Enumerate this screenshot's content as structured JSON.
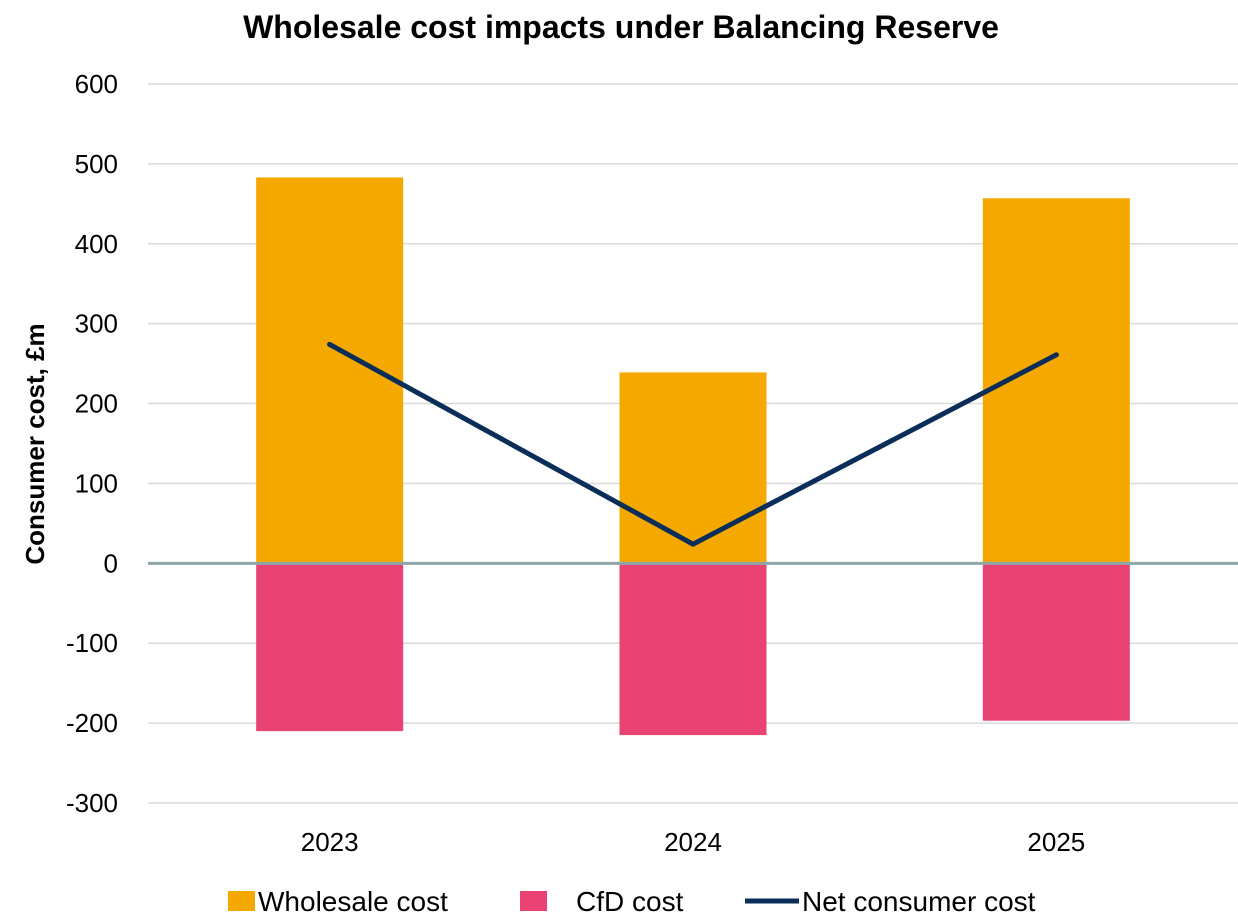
{
  "chart_data": {
    "type": "bar",
    "title": "Wholesale cost impacts under Balancing Reserve",
    "xlabel": "",
    "ylabel": "Consumer cost, £m",
    "categories": [
      "2023",
      "2024",
      "2025"
    ],
    "ylim": [
      -300,
      600
    ],
    "yticks": [
      600,
      500,
      400,
      300,
      200,
      100,
      0,
      -100,
      -200,
      -300
    ],
    "stacked": true,
    "grid": true,
    "legend_position": "bottom",
    "series": [
      {
        "name": "Wholesale cost",
        "kind": "bar",
        "color": "#f5a800",
        "values": [
          483,
          239,
          457
        ]
      },
      {
        "name": "CfD cost",
        "kind": "bar",
        "color": "#e84372",
        "values": [
          -210,
          -215,
          -197
        ]
      },
      {
        "name": "Net consumer cost",
        "kind": "line",
        "color": "#0b2e59",
        "values": [
          274,
          24,
          261
        ]
      }
    ]
  }
}
